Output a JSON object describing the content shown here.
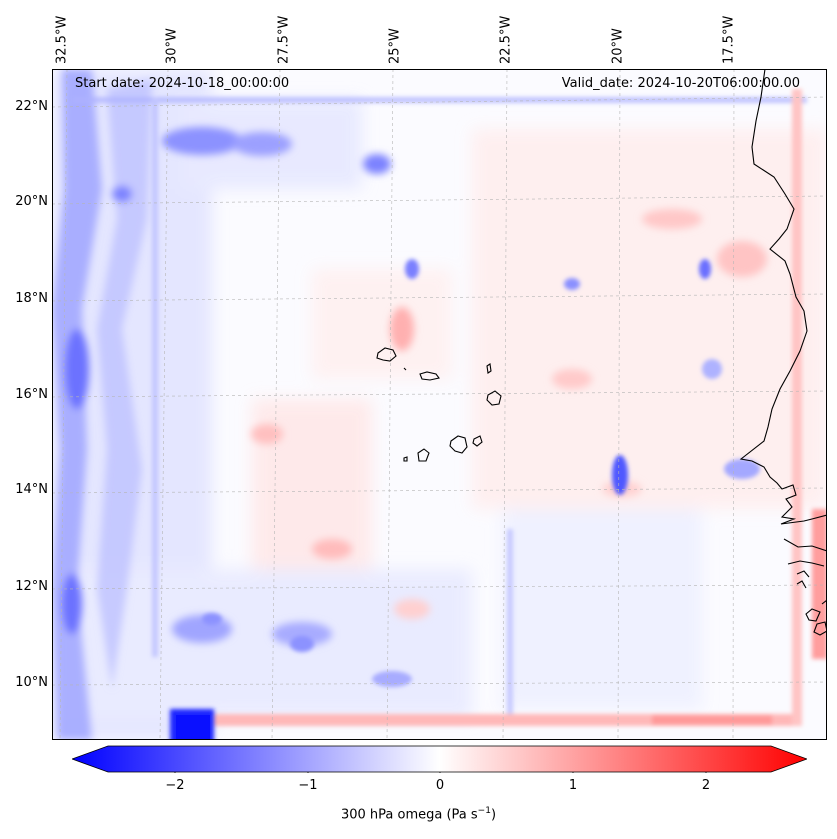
{
  "map": {
    "start_date_text": "Start date: 2024-10-18_00:00:00",
    "valid_date_text": "Valid_date: 2024-10-20T06:00:00.00",
    "longitude_labels": [
      "32.5°W",
      "30°W",
      "27.5°W",
      "25°W",
      "22.5°W",
      "20°W",
      "17.5°W"
    ],
    "longitude_values": [
      -32.5,
      -30,
      -27.5,
      -25,
      -22.5,
      -20,
      -17.5
    ],
    "latitude_labels": [
      "22°N",
      "20°N",
      "18°N",
      "16°N",
      "14°N",
      "12°N",
      "10°N"
    ],
    "latitude_values": [
      22,
      20,
      18,
      16,
      14,
      12,
      10
    ],
    "extent": {
      "lon_min": -33.0,
      "lon_max": -15.9,
      "lat_min": 8.9,
      "lat_max": 22.8
    },
    "gridlines": true,
    "coastline_color": "#000000"
  },
  "colorbar": {
    "label": "300 hPa omega (Pa s",
    "label_exponent": "−1",
    "label_close": ")",
    "ticks": [
      "−2",
      "−1",
      "0",
      "1",
      "2"
    ],
    "tick_values": [
      -2,
      -1,
      0,
      1,
      2
    ],
    "range": [
      -2.5,
      2.5
    ],
    "colors": {
      "min": "#0000ff",
      "mid": "#ffffff",
      "max": "#ff0000"
    },
    "extend": "both"
  }
}
